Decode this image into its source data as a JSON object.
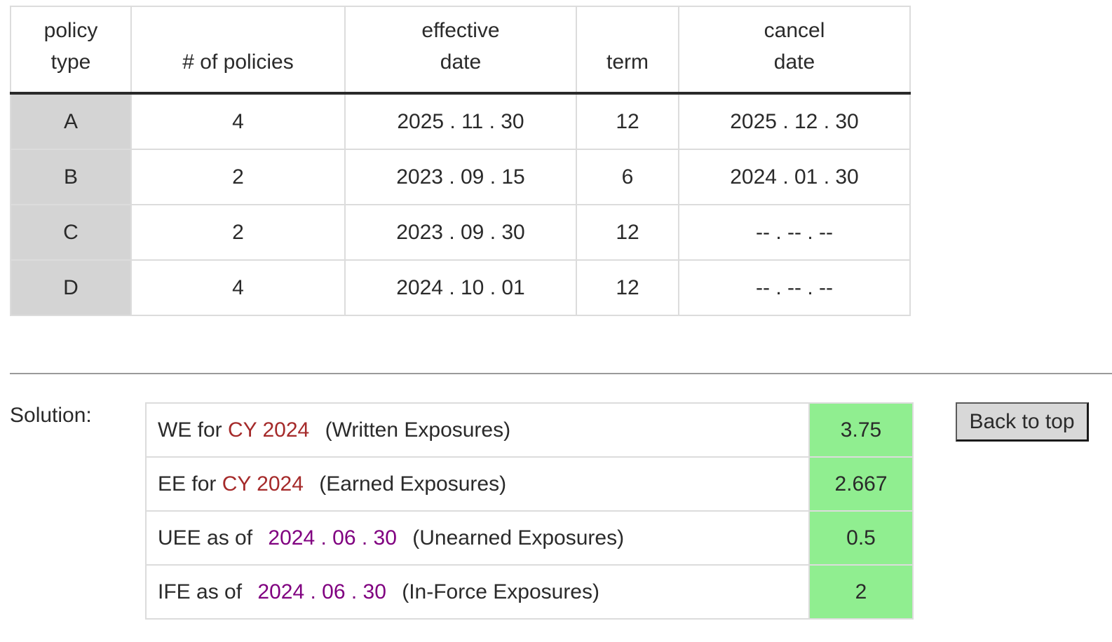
{
  "policy_table": {
    "headers": {
      "policy_type": [
        "policy",
        "type"
      ],
      "num_policies": "# of policies",
      "effective_date": [
        "effective",
        "date"
      ],
      "term": "term",
      "cancel_date": [
        "cancel",
        "date"
      ]
    },
    "rows": [
      {
        "type": "A",
        "count": "4",
        "effective": "2025 . 11 . 30",
        "term": "12",
        "cancel": "2025 . 12 . 30"
      },
      {
        "type": "B",
        "count": "2",
        "effective": "2023 . 09 . 15",
        "term": "6",
        "cancel": "2024 . 01 . 30"
      },
      {
        "type": "C",
        "count": "2",
        "effective": "2023 . 09 . 30",
        "term": "12",
        "cancel": "-- . -- . --"
      },
      {
        "type": "D",
        "count": "4",
        "effective": "2024 . 10 . 01",
        "term": "12",
        "cancel": "-- . -- . --"
      }
    ]
  },
  "solution": {
    "label": "Solution:",
    "rows": [
      {
        "prefix": "WE for",
        "highlight": "CY 2024",
        "suffix": "(Written Exposures)",
        "value": "3.75"
      },
      {
        "prefix": "EE for",
        "highlight": "CY 2024",
        "suffix": "(Earned Exposures)",
        "value": "2.667"
      },
      {
        "prefix": "UEE as of",
        "highlight": "2024 . 06 . 30",
        "suffix": "(Unearned Exposures)",
        "value": "0.5"
      },
      {
        "prefix": "IFE as of",
        "highlight": "2024 . 06 . 30",
        "suffix": "(In-Force Exposures)",
        "value": "2"
      }
    ],
    "back_to_top_label": "Back to top"
  },
  "colors": {
    "highlight_cy": "#a52a2a",
    "highlight_date": "#800080",
    "value_cell_bg": "#90ee90",
    "type_cell_bg": "#d4d4d4"
  }
}
